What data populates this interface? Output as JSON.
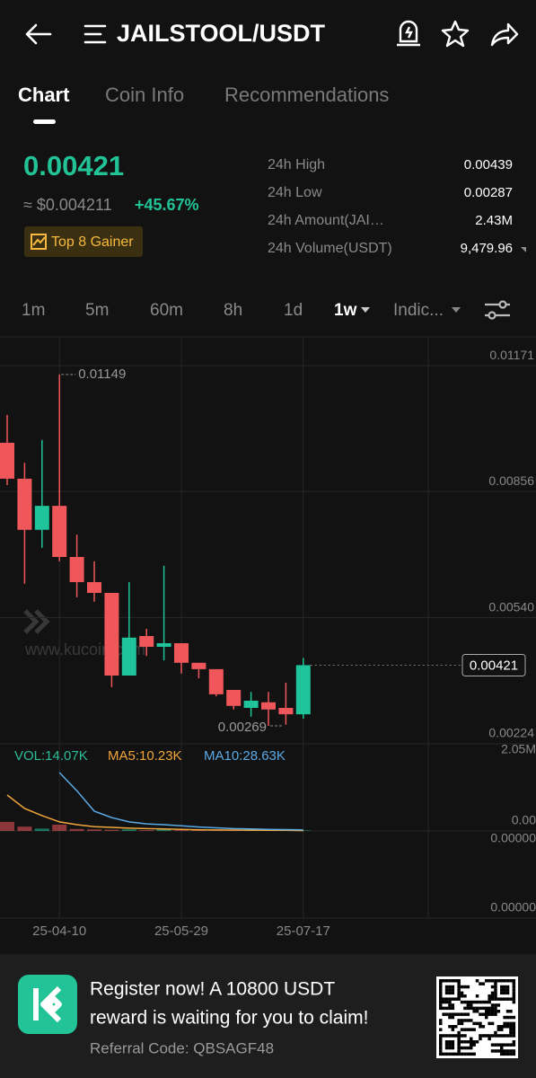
{
  "header": {
    "title": "JAILSTOOL/USDT"
  },
  "tabs": [
    "Chart",
    "Coin Info",
    "Recommendations"
  ],
  "summary": {
    "price": "0.00421",
    "usd": "≈ $0.004211",
    "change": "+45.67%",
    "badge": "Top 8 Gainer"
  },
  "stats": [
    {
      "label": "24h High",
      "value": "0.00439"
    },
    {
      "label": "24h Low",
      "value": "0.00287"
    },
    {
      "label": "24h Amount(JAI…",
      "value": "2.43M"
    },
    {
      "label": "24h Volume(USDT)",
      "value": "9,479.96"
    }
  ],
  "intervals": [
    "1m",
    "5m",
    "60m",
    "8h",
    "1d",
    "1w",
    "Indic..."
  ],
  "indicators": [
    "VOL:14.07K",
    "MA5:10.23K",
    "MA10:28.63K"
  ],
  "indicator_axis_labels": [
    "0.00",
    "0.00000",
    "0.00000"
  ],
  "banner": {
    "line1": "Register now! A 10800 USDT",
    "line2": "reward is waiting for you to claim!",
    "code": "Referral Code: QBSAGF48"
  },
  "chart_data": {
    "type": "candlestick",
    "categories": [
      null,
      null,
      null,
      "25-04-10",
      null,
      null,
      null,
      null,
      null,
      null,
      "25-05-29",
      null,
      null,
      null,
      null,
      null,
      null,
      "25-07-17"
    ],
    "open": [
      0.00978,
      0.00888,
      0.0076,
      0.0082,
      0.00692,
      0.00629,
      0.00602,
      0.00395,
      0.00494,
      0.00467,
      0.00476,
      0.00427,
      0.00411,
      0.00359,
      0.00314,
      0.00328,
      0.00314,
      0.00298
    ],
    "high": [
      0.01048,
      0.00928,
      0.00985,
      0.01149,
      0.00748,
      0.00681,
      0.00602,
      0.00629,
      0.00512,
      0.0067,
      0.00476,
      0.00427,
      0.00411,
      0.00359,
      0.00354,
      0.00354,
      0.00377,
      0.00439
    ],
    "low": [
      0.00872,
      0.00625,
      0.00715,
      0.00681,
      0.00591,
      0.0058,
      0.00366,
      0.00395,
      0.00444,
      0.00433,
      0.004,
      0.00388,
      0.00343,
      0.0031,
      0.00292,
      0.00269,
      0.00272,
      0.00287
    ],
    "close": [
      0.00888,
      0.0076,
      0.0082,
      0.00692,
      0.00629,
      0.00602,
      0.00395,
      0.0049,
      0.00467,
      0.00476,
      0.00427,
      0.00411,
      0.00348,
      0.00319,
      0.00332,
      0.0031,
      0.00298,
      0.00421
    ],
    "up_color": "#1fc49a",
    "down_color": "#f0575b",
    "ylim": [
      0.00224,
      0.01241
    ],
    "yticks": [
      0.01171,
      0.00856,
      {
        "value": 0.0054,
        "label": "0.00540"
      },
      0.00224
    ],
    "volume": [
      230000,
      110000,
      60000,
      160000,
      50000,
      40000,
      30000,
      40000,
      20000,
      60000,
      20000,
      20000,
      15000,
      15000,
      15000,
      14000,
      14000,
      14070
    ],
    "ma5": [
      910000,
      570000,
      390000,
      230000,
      160000,
      110000,
      90000,
      70000,
      60000,
      50000,
      40000,
      30000,
      25000,
      22000,
      20000,
      18000,
      16000,
      10230
    ],
    "ma10": [
      null,
      null,
      null,
      1480000,
      1020000,
      500000,
      340000,
      230000,
      180000,
      160000,
      130000,
      100000,
      80000,
      60000,
      50000,
      40000,
      35000,
      28630
    ],
    "ma5_color": "#f0a63c",
    "ma10_color": "#5aaae6",
    "vol_ylim": [
      0,
      2050000
    ],
    "vol_yticks": [
      {
        "value": 2050000,
        "label": "2.05M"
      }
    ],
    "watermark": "www.kucoin.com"
  }
}
